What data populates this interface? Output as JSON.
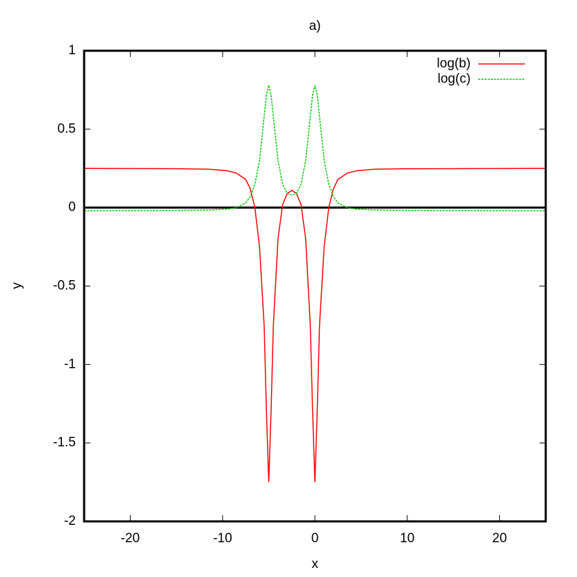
{
  "chart_data": {
    "type": "line",
    "title": "a)",
    "x_label": "x",
    "y_label": "y",
    "x": [
      -25,
      -14.5,
      -11.5,
      -9.5,
      -8.5,
      -7.5,
      -7,
      -6.5,
      -6,
      -5.5,
      -5.25,
      -5,
      -4.75,
      -4.5,
      -4,
      -3.5,
      -3,
      -2.5,
      -2,
      -1.5,
      -1,
      -0.5,
      -0.25,
      0,
      0.25,
      0.5,
      1,
      1.5,
      2,
      2.5,
      3.5,
      4.5,
      6.5,
      9.5,
      25
    ],
    "series": [
      {
        "name": "log(b)",
        "color": "#ff0000",
        "dashed": false,
        "values": [
          0.25,
          0.248,
          0.245,
          0.235,
          0.22,
          0.18,
          0.12,
          0.0,
          -0.25,
          -0.75,
          -1.3,
          -1.75,
          -1.3,
          -0.75,
          -0.2,
          0.02,
          0.09,
          0.11,
          0.09,
          0.02,
          -0.2,
          -0.75,
          -1.3,
          -1.75,
          -1.3,
          -0.75,
          -0.25,
          0.0,
          0.12,
          0.18,
          0.22,
          0.235,
          0.245,
          0.248,
          0.25
        ]
      },
      {
        "name": "log(c)",
        "color": "#00cc00",
        "dashed": true,
        "values": [
          -0.02,
          -0.018,
          -0.015,
          -0.01,
          0.0,
          0.03,
          0.07,
          0.15,
          0.3,
          0.58,
          0.72,
          0.78,
          0.72,
          0.58,
          0.3,
          0.15,
          0.09,
          0.08,
          0.09,
          0.15,
          0.3,
          0.58,
          0.72,
          0.78,
          0.72,
          0.58,
          0.3,
          0.15,
          0.07,
          0.03,
          0.0,
          -0.01,
          -0.015,
          -0.018,
          -0.02
        ]
      }
    ],
    "xlim": [
      -25,
      25
    ],
    "ylim": [
      -2,
      1
    ],
    "xticks": [
      -20,
      -10,
      0,
      10,
      20
    ],
    "yticks": [
      -2,
      -1.5,
      -1,
      -0.5,
      0,
      0.5,
      1
    ],
    "zero_axis": true,
    "grid": false,
    "legend": "top-right"
  }
}
